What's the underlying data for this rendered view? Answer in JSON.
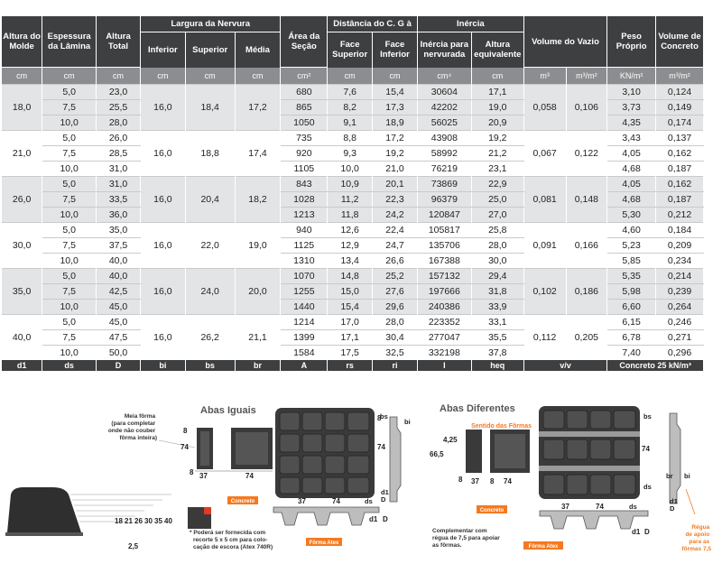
{
  "header": {
    "altura_molde": "Altura do Molde",
    "espessura_lamina": "Espessura da Lâmina",
    "altura_total": "Altura Total",
    "largura_nervura": "Largura da Nervura",
    "inferior": "Inferior",
    "superior": "Superior",
    "media": "Média",
    "area_secao": "Área da Seção",
    "distancia_cg": "Distância do C. G à",
    "face_superior": "Face Superior",
    "face_inferior": "Face Inferior",
    "inercia": "Inércia",
    "inercia_nervurada": "Inércia para nervurada",
    "altura_equivalente": "Altura equivalente",
    "volume_vazio": "Volume do Vazio",
    "peso_proprio": "Peso Próprio",
    "volume_concreto": "Volume de Concreto"
  },
  "units": [
    "cm",
    "cm",
    "cm",
    "cm",
    "cm",
    "cm",
    "cm²",
    "cm",
    "cm",
    "cm⁴",
    "cm",
    "m³",
    "m³/m²",
    "KN/m²",
    "m³/m²"
  ],
  "groups": [
    {
      "d1": "18,0",
      "bi": "16,0",
      "bs": "18,4",
      "br": "17,2",
      "vol": "0,058",
      "volm2": "0,106",
      "rows": [
        {
          "ds": "5,0",
          "D": "23,0",
          "A": "680",
          "rs": "7,6",
          "ri": "15,4",
          "I": "30604",
          "heq": "17,1",
          "peso": "3,10",
          "conc": "0,124"
        },
        {
          "ds": "7,5",
          "D": "25,5",
          "A": "865",
          "rs": "8,2",
          "ri": "17,3",
          "I": "42202",
          "heq": "19,0",
          "peso": "3,73",
          "conc": "0,149"
        },
        {
          "ds": "10,0",
          "D": "28,0",
          "A": "1050",
          "rs": "9,1",
          "ri": "18,9",
          "I": "56025",
          "heq": "20,9",
          "peso": "4,35",
          "conc": "0,174"
        }
      ]
    },
    {
      "d1": "21,0",
      "bi": "16,0",
      "bs": "18,8",
      "br": "17,4",
      "vol": "0,067",
      "volm2": "0,122",
      "rows": [
        {
          "ds": "5,0",
          "D": "26,0",
          "A": "735",
          "rs": "8,8",
          "ri": "17,2",
          "I": "43908",
          "heq": "19,2",
          "peso": "3,43",
          "conc": "0,137"
        },
        {
          "ds": "7,5",
          "D": "28,5",
          "A": "920",
          "rs": "9,3",
          "ri": "19,2",
          "I": "58992",
          "heq": "21,2",
          "peso": "4,05",
          "conc": "0,162"
        },
        {
          "ds": "10,0",
          "D": "31,0",
          "A": "1105",
          "rs": "10,0",
          "ri": "21,0",
          "I": "76219",
          "heq": "23,1",
          "peso": "4,68",
          "conc": "0,187"
        }
      ]
    },
    {
      "d1": "26,0",
      "bi": "16,0",
      "bs": "20,4",
      "br": "18,2",
      "vol": "0,081",
      "volm2": "0,148",
      "rows": [
        {
          "ds": "5,0",
          "D": "31,0",
          "A": "843",
          "rs": "10,9",
          "ri": "20,1",
          "I": "73869",
          "heq": "22,9",
          "peso": "4,05",
          "conc": "0,162"
        },
        {
          "ds": "7,5",
          "D": "33,5",
          "A": "1028",
          "rs": "11,2",
          "ri": "22,3",
          "I": "96379",
          "heq": "25,0",
          "peso": "4,68",
          "conc": "0,187"
        },
        {
          "ds": "10,0",
          "D": "36,0",
          "A": "1213",
          "rs": "11,8",
          "ri": "24,2",
          "I": "120847",
          "heq": "27,0",
          "peso": "5,30",
          "conc": "0,212"
        }
      ]
    },
    {
      "d1": "30,0",
      "bi": "16,0",
      "bs": "22,0",
      "br": "19,0",
      "vol": "0,091",
      "volm2": "0,166",
      "rows": [
        {
          "ds": "5,0",
          "D": "35,0",
          "A": "940",
          "rs": "12,6",
          "ri": "22,4",
          "I": "105817",
          "heq": "25,8",
          "peso": "4,60",
          "conc": "0,184"
        },
        {
          "ds": "7,5",
          "D": "37,5",
          "A": "1125",
          "rs": "12,9",
          "ri": "24,7",
          "I": "135706",
          "heq": "28,0",
          "peso": "5,23",
          "conc": "0,209"
        },
        {
          "ds": "10,0",
          "D": "40,0",
          "A": "1310",
          "rs": "13,4",
          "ri": "26,6",
          "I": "167388",
          "heq": "30,0",
          "peso": "5,85",
          "conc": "0,234"
        }
      ]
    },
    {
      "d1": "35,0",
      "bi": "16,0",
      "bs": "24,0",
      "br": "20,0",
      "vol": "0,102",
      "volm2": "0,186",
      "rows": [
        {
          "ds": "5,0",
          "D": "40,0",
          "A": "1070",
          "rs": "14,8",
          "ri": "25,2",
          "I": "157132",
          "heq": "29,4",
          "peso": "5,35",
          "conc": "0,214"
        },
        {
          "ds": "7,5",
          "D": "42,5",
          "A": "1255",
          "rs": "15,0",
          "ri": "27,6",
          "I": "197666",
          "heq": "31,8",
          "peso": "5,98",
          "conc": "0,239"
        },
        {
          "ds": "10,0",
          "D": "45,0",
          "A": "1440",
          "rs": "15,4",
          "ri": "29,6",
          "I": "240386",
          "heq": "33,9",
          "peso": "6,60",
          "conc": "0,264"
        }
      ]
    },
    {
      "d1": "40,0",
      "bi": "16,0",
      "bs": "26,2",
      "br": "21,1",
      "vol": "0,112",
      "volm2": "0,205",
      "rows": [
        {
          "ds": "5,0",
          "D": "45,0",
          "A": "1214",
          "rs": "17,0",
          "ri": "28,0",
          "I": "223352",
          "heq": "33,1",
          "peso": "6,15",
          "conc": "0,246"
        },
        {
          "ds": "7,5",
          "D": "47,5",
          "A": "1399",
          "rs": "17,1",
          "ri": "30,4",
          "I": "277047",
          "heq": "35,5",
          "peso": "6,78",
          "conc": "0,271"
        },
        {
          "ds": "10,0",
          "D": "50,0",
          "A": "1584",
          "rs": "17,5",
          "ri": "32,5",
          "I": "332198",
          "heq": "37,8",
          "peso": "7,40",
          "conc": "0,296"
        }
      ]
    }
  ],
  "footer": [
    "d1",
    "ds",
    "D",
    "bi",
    "bs",
    "br",
    "A",
    "rs",
    "ri",
    "I",
    "heq",
    "v/v",
    "Concreto 25 kN/m³"
  ],
  "drawing": {
    "abas_iguais": "Abas Iguais",
    "abas_diferentes": "Abas Diferentes",
    "meia_forma": "Meia fôrma (para completar onde não couber fôrma inteira)",
    "sentido_formas": "Sentido das Fôrmas",
    "concreto": "Concreto",
    "forma_atex": "Fôrma Atex",
    "nota_recorte": "* Poderá ser fornecida com recorte 5 x 5 cm para colocação de escora (Atex 740R)",
    "complementar": "Complementar com régua de 7,5 para apoiar as fôrmas.",
    "regua": "Régua de apoio para as fôrmas 7,5",
    "dim_8": "8",
    "dim_37": "37",
    "dim_74": "74",
    "dim_66_5": "66,5",
    "dim_4_25": "4,25",
    "dim_2_5": "2,5",
    "heights": [
      "18",
      "21",
      "26",
      "30",
      "35",
      "40"
    ],
    "lbl_bs": "bs",
    "lbl_bi": "bi",
    "lbl_br": "br",
    "lbl_ds": "ds",
    "lbl_d1": "d1",
    "lbl_D": "D"
  }
}
